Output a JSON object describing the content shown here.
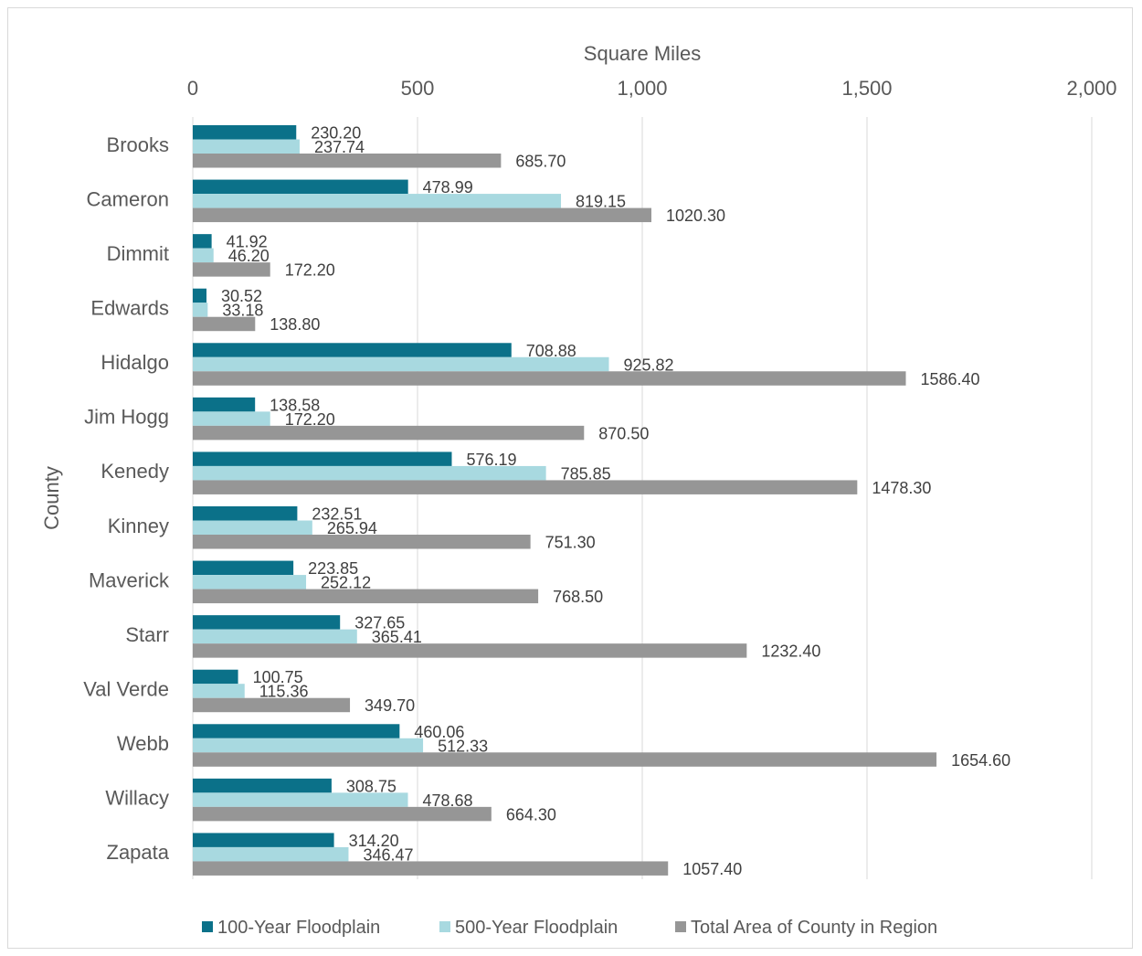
{
  "chart_data": {
    "type": "bar",
    "orientation": "horizontal",
    "xlabel": "Square Miles",
    "ylabel": "County",
    "xlim": [
      0,
      2000
    ],
    "xticks": [
      0,
      500,
      1000,
      1500,
      2000
    ],
    "xtick_labels": [
      "0",
      "500",
      "1,000",
      "1,500",
      "2,000"
    ],
    "grid": true,
    "legend_position": "bottom",
    "categories": [
      "Brooks",
      "Cameron",
      "Dimmit",
      "Edwards",
      "Hidalgo",
      "Jim Hogg",
      "Kenedy",
      "Kinney",
      "Maverick",
      "Starr",
      "Val Verde",
      "Webb",
      "Willacy",
      "Zapata"
    ],
    "series": [
      {
        "name": "100-Year Floodplain",
        "color": "#0b7189",
        "values": [
          230.2,
          478.99,
          41.92,
          30.52,
          708.88,
          138.58,
          576.19,
          232.51,
          223.85,
          327.65,
          100.75,
          460.06,
          308.75,
          314.2
        ],
        "labels": [
          "230.20",
          "478.99",
          "41.92",
          "30.52",
          "708.88",
          "138.58",
          "576.19",
          "232.51",
          "223.85",
          "327.65",
          "100.75",
          "460.06",
          "308.75",
          "314.20"
        ]
      },
      {
        "name": "500-Year Floodplain",
        "color": "#a8d9e0",
        "values": [
          237.74,
          819.15,
          46.2,
          33.18,
          925.82,
          172.2,
          785.85,
          265.94,
          252.12,
          365.41,
          115.36,
          512.33,
          478.68,
          346.47
        ],
        "labels": [
          "237.74",
          "819.15",
          "46.20",
          "33.18",
          "925.82",
          "172.20",
          "785.85",
          "265.94",
          "252.12",
          "365.41",
          "115.36",
          "512.33",
          "478.68",
          "346.47"
        ]
      },
      {
        "name": "Total Area of County in Region",
        "color": "#969696",
        "values": [
          685.7,
          1020.3,
          172.2,
          138.8,
          1586.4,
          870.5,
          1478.3,
          751.3,
          768.5,
          1232.4,
          349.7,
          1654.6,
          664.3,
          1057.4
        ],
        "labels": [
          "685.70",
          "1020.30",
          "172.20",
          "138.80",
          "1586.40",
          "870.50",
          "1478.30",
          "751.30",
          "768.50",
          "1232.40",
          "349.70",
          "1654.60",
          "664.30",
          "1057.40"
        ]
      }
    ]
  }
}
